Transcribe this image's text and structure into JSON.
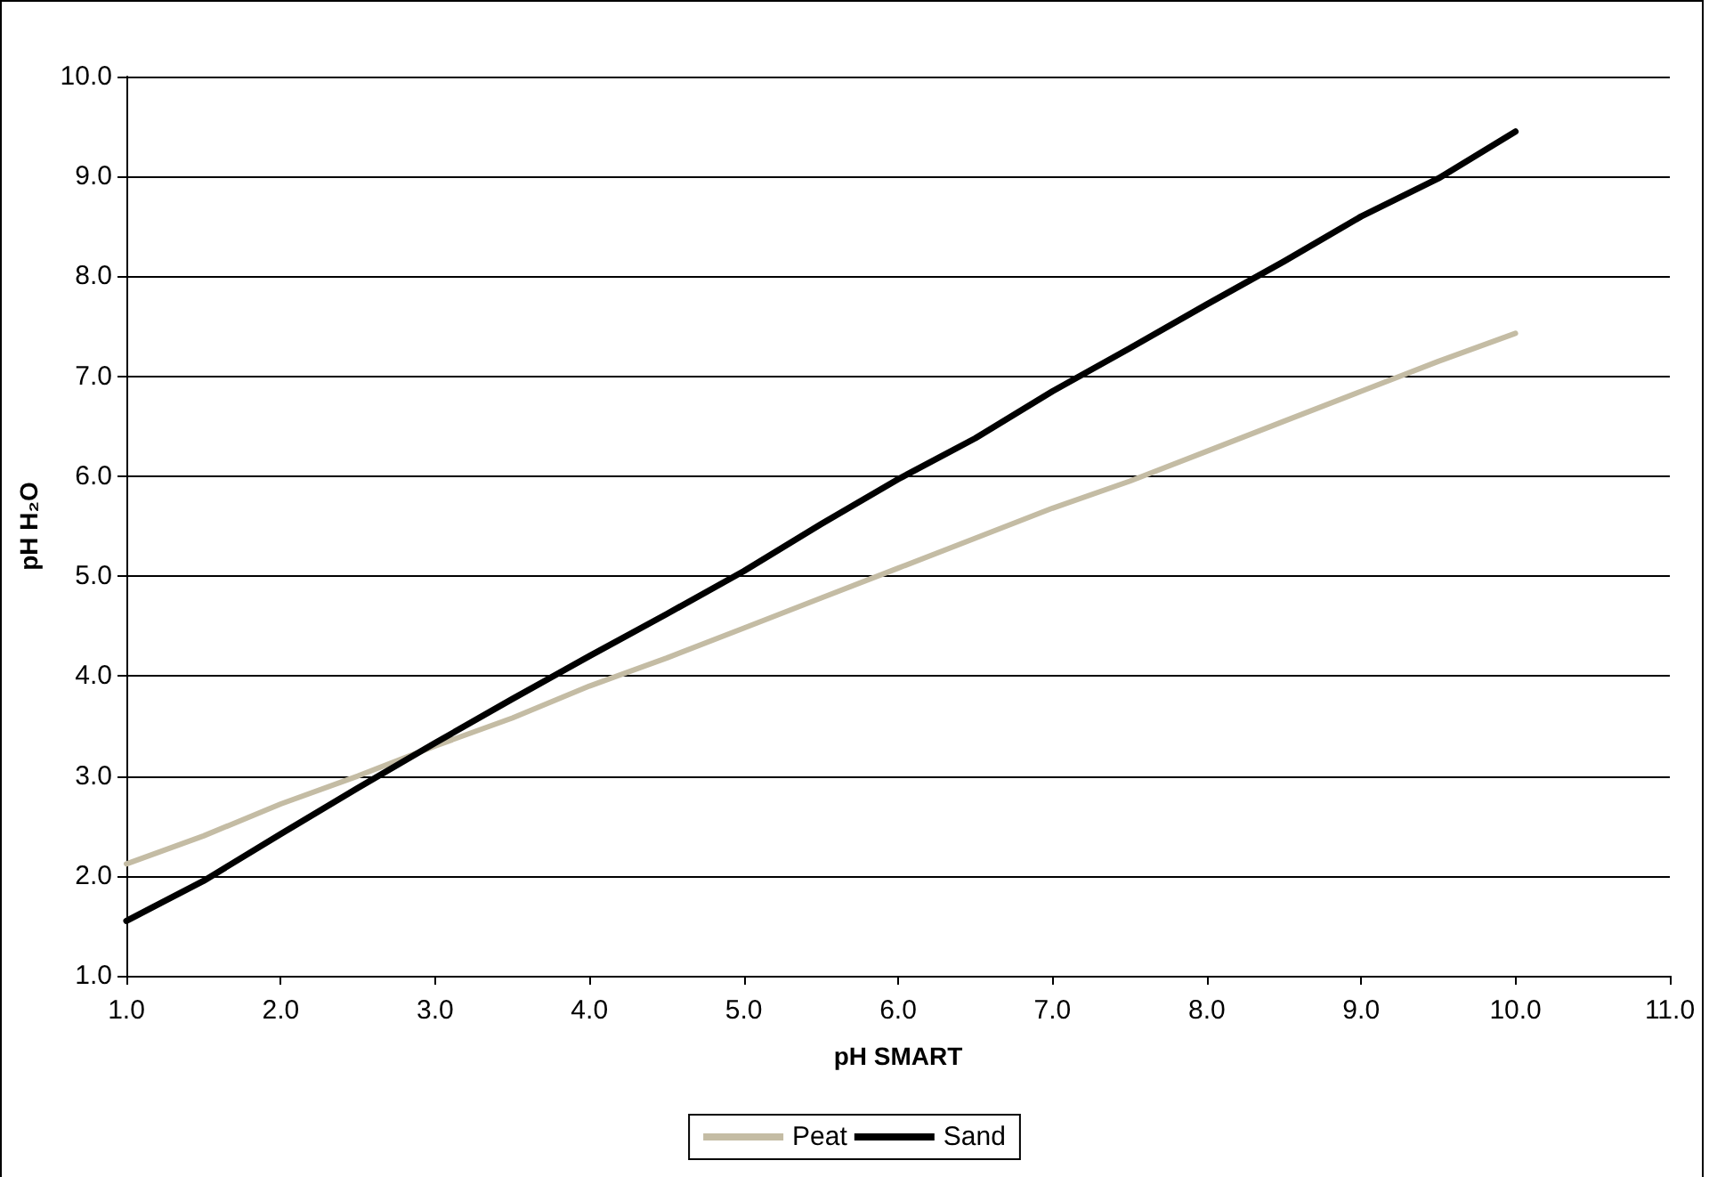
{
  "chart_data": {
    "type": "line",
    "xlabel": "pH SMART",
    "ylabel": "pH H₂O",
    "x": [
      1.0,
      1.5,
      2.0,
      2.5,
      3.0,
      3.5,
      4.0,
      4.5,
      5.0,
      5.5,
      6.0,
      6.5,
      7.0,
      7.5,
      8.0,
      8.5,
      9.0,
      9.5,
      10.0
    ],
    "series": [
      {
        "name": "Peat",
        "color": "#c4bca4",
        "values": [
          2.12,
          2.4,
          2.72,
          3.0,
          3.3,
          3.58,
          3.9,
          4.18,
          4.48,
          4.78,
          5.08,
          5.38,
          5.68,
          5.95,
          6.25,
          6.55,
          6.85,
          7.15,
          7.43
        ]
      },
      {
        "name": "Sand",
        "color": "#000000",
        "values": [
          1.55,
          1.95,
          2.42,
          2.88,
          3.33,
          3.77,
          4.2,
          4.62,
          5.05,
          5.52,
          5.97,
          6.38,
          6.85,
          7.28,
          7.72,
          8.15,
          8.6,
          8.98,
          9.45
        ]
      }
    ],
    "xlim": [
      1.0,
      11.0
    ],
    "xticks": [
      {
        "value": 1,
        "label": "1.0"
      },
      {
        "value": 2,
        "label": "2.0"
      },
      {
        "value": 3,
        "label": "3.0"
      },
      {
        "value": 4,
        "label": "4.0"
      },
      {
        "value": 5,
        "label": "5.0"
      },
      {
        "value": 6,
        "label": "6.0"
      },
      {
        "value": 7,
        "label": "7.0"
      },
      {
        "value": 8,
        "label": "8.0"
      },
      {
        "value": 9,
        "label": "9.0"
      },
      {
        "value": 10,
        "label": "10.0"
      },
      {
        "value": 11,
        "label": "11.0"
      }
    ],
    "ylim": [
      1.0,
      10.0
    ],
    "yticks": [
      {
        "value": 1,
        "label": "1.0"
      },
      {
        "value": 2,
        "label": "2.0"
      },
      {
        "value": 3,
        "label": "3.0"
      },
      {
        "value": 4,
        "label": "4.0"
      },
      {
        "value": 5,
        "label": "5.0"
      },
      {
        "value": 6,
        "label": "6.0"
      },
      {
        "value": 7,
        "label": "7.0"
      },
      {
        "value": 8,
        "label": "8.0"
      },
      {
        "value": 9,
        "label": "9.0"
      },
      {
        "value": 10,
        "label": "10.0"
      }
    ],
    "grid": "y",
    "legend": "bottom",
    "marker": "none",
    "line_style": "solid"
  }
}
